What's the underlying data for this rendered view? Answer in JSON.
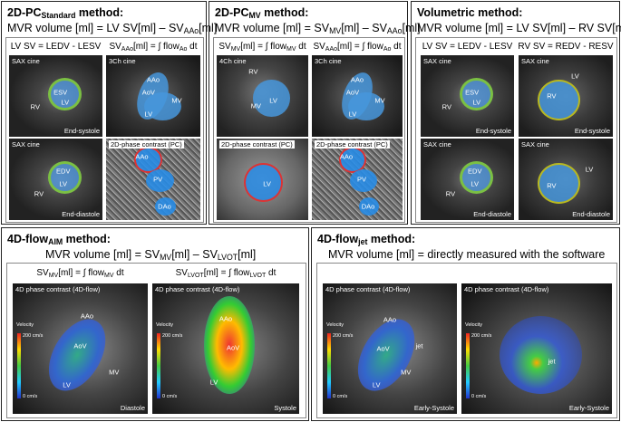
{
  "panels": [
    {
      "title": [
        "2D-PC",
        "Standard",
        " method:"
      ],
      "formula": [
        "MVR volume [ml] = LV SV[ml] – SV",
        "AAo",
        "[ml]"
      ],
      "columns": [
        {
          "heading": [
            "LV SV = LEDV - LESV"
          ],
          "images": [
            {
              "caption": "SAX cine",
              "labels": [
                "ESV",
                "LV",
                "RV"
              ],
              "phase": "End-systole"
            },
            {
              "caption": "SAX cine",
              "labels": [
                "EDV",
                "LV",
                "RV"
              ],
              "phase": "End-diastole"
            }
          ]
        },
        {
          "heading": [
            "SV",
            "AAo",
            "[ml] = ∫ flow",
            "Ao",
            " dt"
          ],
          "images": [
            {
              "caption": "3Ch cine",
              "labels": [
                "AAo",
                "AoV",
                "MV",
                "LV"
              ]
            },
            {
              "caption": "2D-phase contrast (PC)",
              "labels": [
                "AAo",
                "PV",
                "DAo"
              ]
            }
          ]
        }
      ]
    },
    {
      "title": [
        "2D-PC",
        "MV",
        " method:"
      ],
      "formula": [
        "MVR volume [ml] = SV",
        "MV",
        "[ml] – SV",
        "AAo",
        "[ml]"
      ],
      "columns": [
        {
          "heading": [
            "SV",
            "MV",
            "[ml] = ∫ flow",
            "MV",
            " dt"
          ],
          "images": [
            {
              "caption": "4Ch cine",
              "labels": [
                "RV",
                "LV",
                "MV"
              ]
            },
            {
              "caption": "2D-phase contrast (PC)",
              "labels": [
                "LV"
              ]
            }
          ]
        },
        {
          "heading": [
            "SV",
            "AAo",
            "[ml] = ∫ flow",
            "Ao",
            " dt"
          ],
          "images": [
            {
              "caption": "3Ch cine",
              "labels": [
                "AAo",
                "AoV",
                "MV",
                "LV"
              ]
            },
            {
              "caption": "2D-phase contrast (PC)",
              "labels": [
                "AAo",
                "PV",
                "DAo"
              ]
            }
          ]
        }
      ]
    },
    {
      "title": [
        "Volumetric method:"
      ],
      "formula": [
        "MVR volume [ml] = LV SV[ml] – RV SV[ml]"
      ],
      "columns": [
        {
          "heading": [
            "LV SV = LEDV - LESV"
          ],
          "images": [
            {
              "caption": "SAX cine",
              "labels": [
                "ESV",
                "LV",
                "RV"
              ],
              "phase": "End-systole"
            },
            {
              "caption": "SAX cine",
              "labels": [
                "EDV",
                "LV",
                "RV"
              ],
              "phase": "End-diastole"
            }
          ]
        },
        {
          "heading": [
            "RV SV = REDV - RESV"
          ],
          "images": [
            {
              "caption": "SAX cine",
              "labels": [
                "LV",
                "RV"
              ],
              "phase": "End-systole"
            },
            {
              "caption": "SAX cine",
              "labels": [
                "LV",
                "RV"
              ],
              "phase": "End-diastole"
            }
          ]
        }
      ]
    },
    {
      "title": [
        "4D-flow",
        "AIM",
        " method:"
      ],
      "formula": [
        "MVR volume [ml] = SV",
        "MV",
        "[ml] – SV",
        "LVOT",
        "[ml]"
      ],
      "columns": [
        {
          "heading": [
            "SV",
            "MV",
            "[ml] = ∫ flow",
            "MV",
            " dt"
          ],
          "images": [
            {
              "caption": "4D phase contrast (4D-flow)",
              "scale": [
                "Velocity",
                "200 cm/s",
                "0 cm/s"
              ],
              "labels": [
                "AAo",
                "AoV",
                "MV",
                "LV"
              ],
              "phase": "Diastole"
            }
          ]
        },
        {
          "heading": [
            "SV",
            "LVOT",
            "[ml] = ∫ flow",
            "LVOT",
            " dt"
          ],
          "images": [
            {
              "caption": "4D phase contrast (4D-flow)",
              "scale": [
                "Velocity",
                "200 cm/s",
                "0 cm/s"
              ],
              "labels": [
                "AAo",
                "AoV",
                "LV"
              ],
              "phase": "Systole"
            }
          ]
        }
      ]
    },
    {
      "title": [
        "4D-flow",
        "jet",
        " method:"
      ],
      "formula": [
        "MVR volume [ml] = directly measured with the software"
      ],
      "columns": [
        {
          "images": [
            {
              "caption": "4D phase contrast (4D-flow)",
              "scale": [
                "Velocity",
                "200 cm/s",
                "0 cm/s"
              ],
              "labels": [
                "AAo",
                "AoV",
                "jet",
                "MV",
                "LV"
              ],
              "phase": "Early-Systole"
            }
          ]
        },
        {
          "images": [
            {
              "caption": "4D phase contrast (4D-flow)",
              "scale": [
                "Velocity",
                "200 cm/s",
                "0 cm/s"
              ],
              "labels": [
                "jet"
              ],
              "phase": "Early-Systole"
            }
          ]
        }
      ]
    }
  ]
}
